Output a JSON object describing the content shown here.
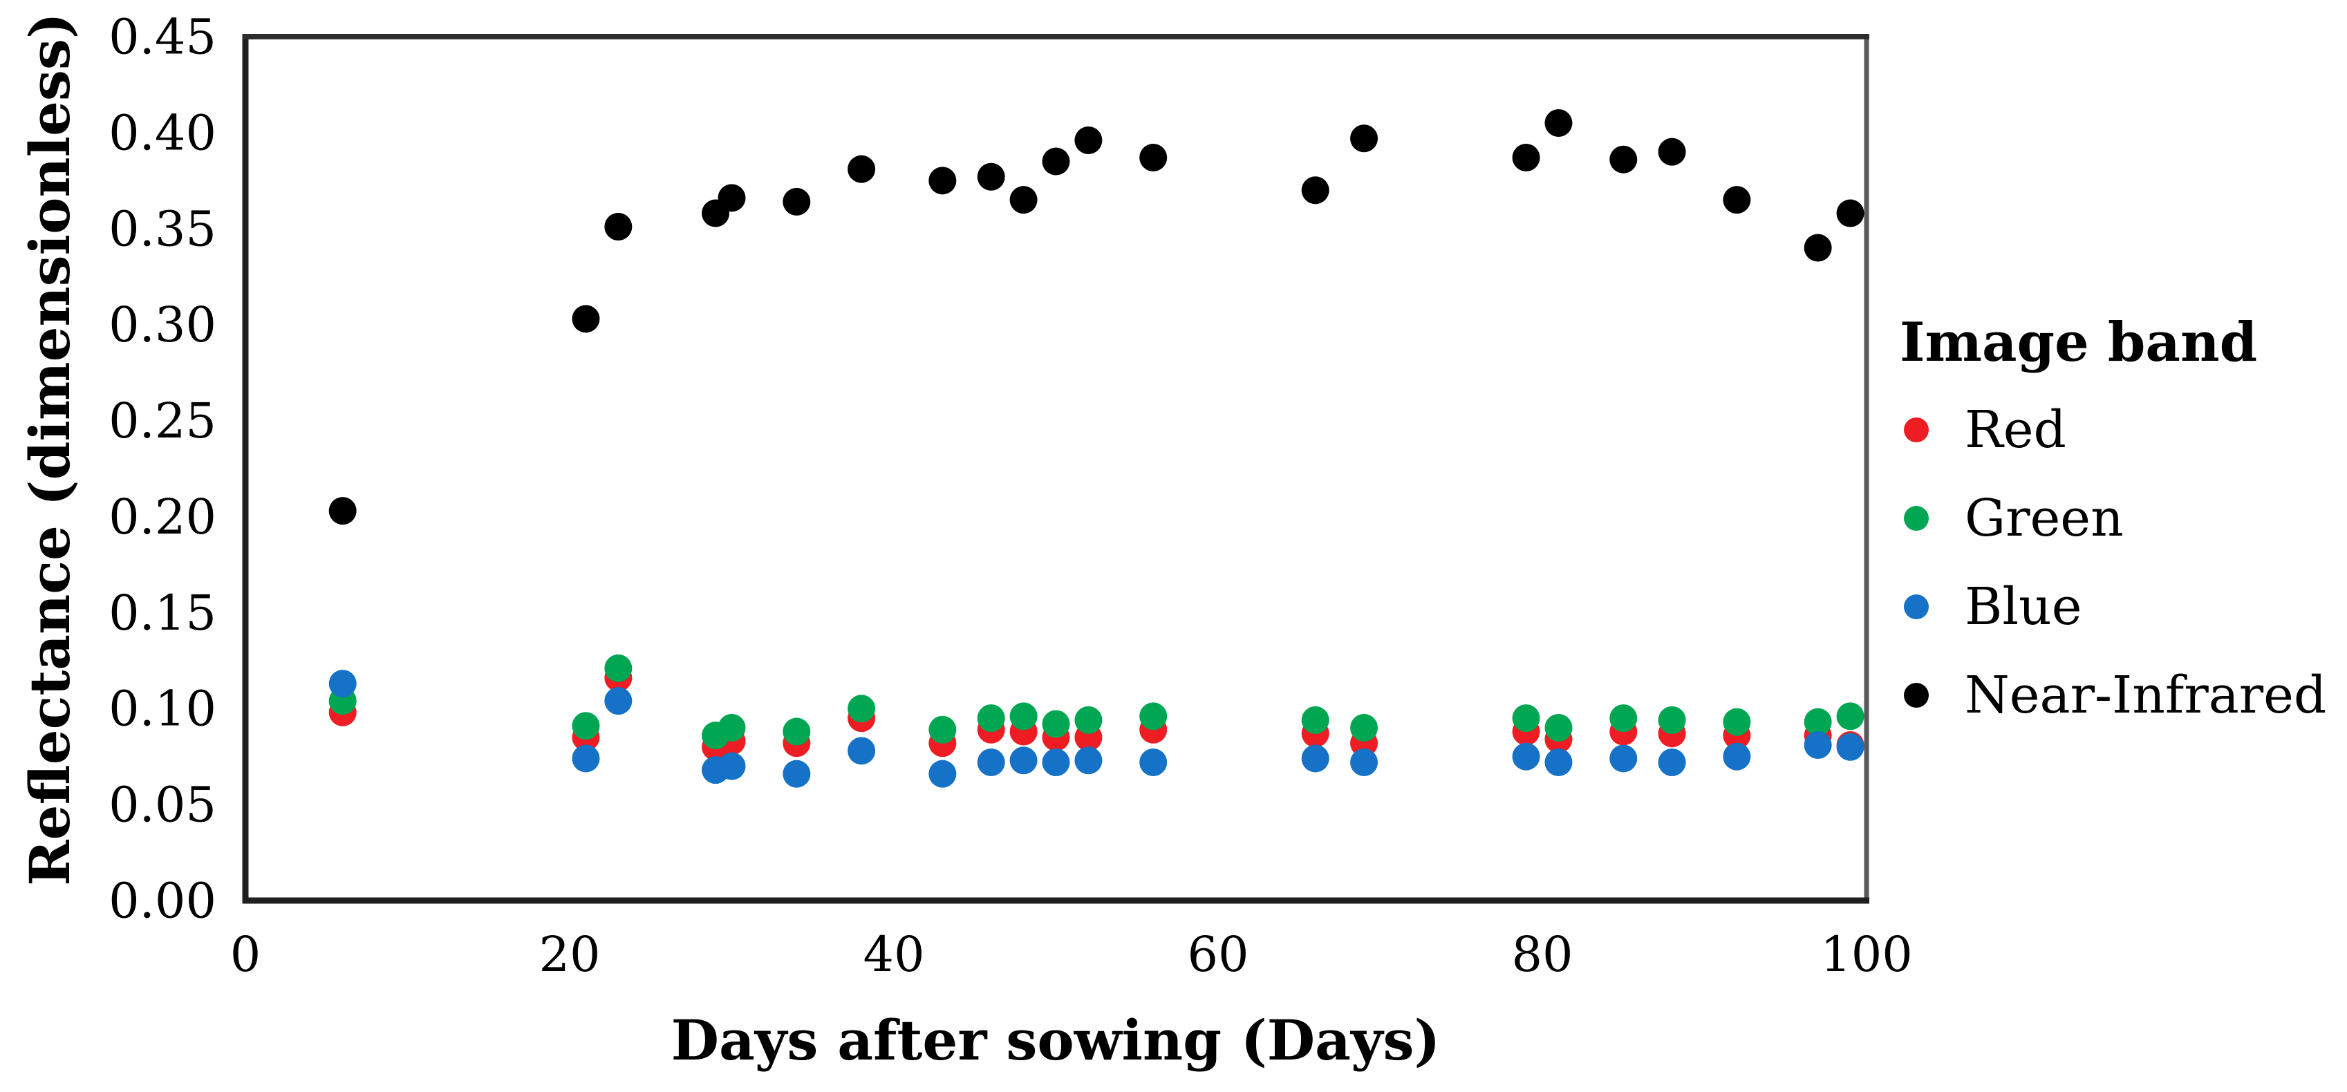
{
  "figure": {
    "background": "#ffffff",
    "axis_box_color": "#58595b",
    "axis_line_color": "#1f1f1f",
    "text_color": "#000000"
  },
  "chart_data": {
    "type": "scatter",
    "title": "",
    "xlabel": "Days after sowing (Days)",
    "ylabel": "Reflectance (dimensionless)",
    "xlim": [
      0,
      100
    ],
    "ylim": [
      0,
      0.45
    ],
    "x_ticks": [
      "0",
      "20",
      "40",
      "60",
      "80",
      "100"
    ],
    "y_ticks": [
      "0.00",
      "0.05",
      "0.10",
      "0.15",
      "0.20",
      "0.25",
      "0.30",
      "0.35",
      "0.40",
      "0.45"
    ],
    "grid": false,
    "legend": {
      "title": "Image band",
      "position": "right-center"
    },
    "x": [
      6,
      21,
      23,
      29,
      30,
      34,
      38,
      43,
      46,
      48,
      50,
      52,
      56,
      66,
      69,
      79,
      81,
      85,
      88,
      92,
      97,
      99
    ],
    "series": [
      {
        "name": "Red",
        "color": "#ee1c23",
        "values": [
          0.098,
          0.085,
          0.116,
          0.08,
          0.083,
          0.082,
          0.095,
          0.082,
          0.089,
          0.088,
          0.085,
          0.085,
          0.089,
          0.087,
          0.082,
          0.088,
          0.084,
          0.088,
          0.087,
          0.086,
          0.086,
          0.081
        ]
      },
      {
        "name": "Green",
        "color": "#00a651",
        "values": [
          0.104,
          0.091,
          0.121,
          0.086,
          0.09,
          0.088,
          0.1,
          0.089,
          0.095,
          0.096,
          0.092,
          0.094,
          0.096,
          0.094,
          0.09,
          0.095,
          0.09,
          0.095,
          0.094,
          0.093,
          0.093,
          0.096
        ]
      },
      {
        "name": "Blue",
        "color": "#1572c6",
        "values": [
          0.113,
          0.074,
          0.104,
          0.068,
          0.07,
          0.066,
          0.078,
          0.066,
          0.072,
          0.073,
          0.072,
          0.073,
          0.072,
          0.074,
          0.072,
          0.075,
          0.072,
          0.074,
          0.072,
          0.075,
          0.081,
          0.08
        ]
      },
      {
        "name": "Near-Infrared",
        "color": "#000000",
        "values": [
          0.203,
          0.303,
          0.351,
          0.358,
          0.366,
          0.364,
          0.381,
          0.375,
          0.377,
          0.365,
          0.385,
          0.396,
          0.387,
          0.37,
          0.397,
          0.387,
          0.405,
          0.386,
          0.39,
          0.365,
          0.34,
          0.358
        ]
      }
    ]
  }
}
